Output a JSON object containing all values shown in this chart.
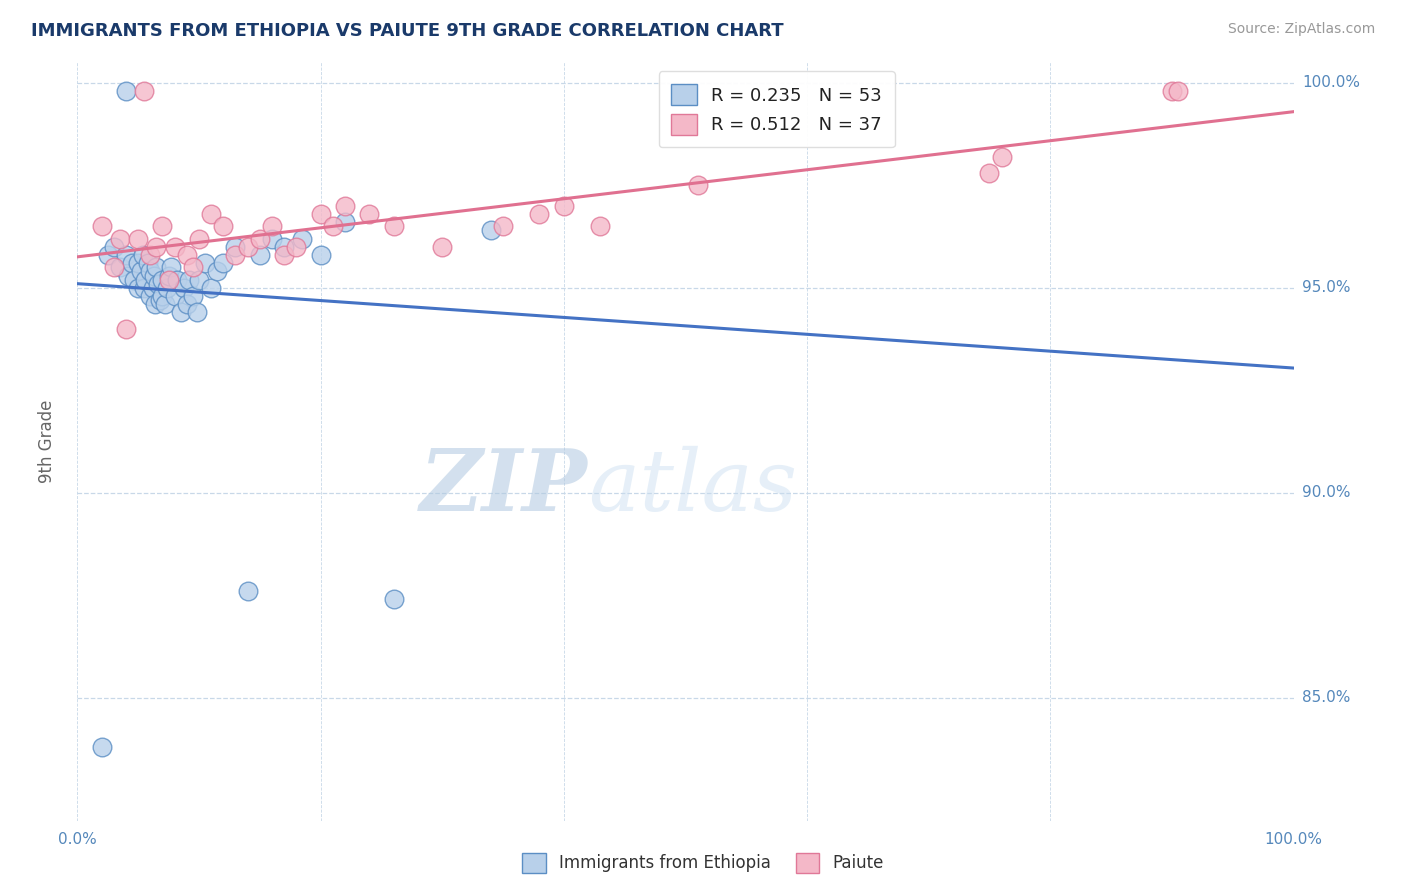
{
  "title": "IMMIGRANTS FROM ETHIOPIA VS PAIUTE 9TH GRADE CORRELATION CHART",
  "source": "Source: ZipAtlas.com",
  "ylabel": "9th Grade",
  "xlim": [
    0.0,
    1.0
  ],
  "ylim": [
    0.82,
    1.005
  ],
  "yticks": [
    0.85,
    0.9,
    0.95,
    1.0
  ],
  "ytick_labels": [
    "85.0%",
    "90.0%",
    "95.0%",
    "100.0%"
  ],
  "R_ethiopia": 0.235,
  "N_ethiopia": 53,
  "R_paiute": 0.512,
  "N_paiute": 37,
  "ethiopia_color": "#b8d0ea",
  "paiute_color": "#f4b8c8",
  "ethiopia_edge_color": "#5b8ec4",
  "paiute_edge_color": "#e07898",
  "ethiopia_line_color": "#4472c4",
  "paiute_line_color": "#e07090",
  "background_color": "#ffffff",
  "grid_color": "#c8d8e8",
  "title_color": "#1a3a6a",
  "axis_label_color": "#5588bb",
  "watermark_color": "#d8e8f4",
  "ethiopia_x": [
    0.02,
    0.025,
    0.03,
    0.035,
    0.04,
    0.04,
    0.042,
    0.045,
    0.047,
    0.05,
    0.05,
    0.052,
    0.054,
    0.055,
    0.056,
    0.058,
    0.06,
    0.06,
    0.062,
    0.063,
    0.064,
    0.065,
    0.066,
    0.068,
    0.07,
    0.07,
    0.072,
    0.074,
    0.075,
    0.077,
    0.08,
    0.082,
    0.085,
    0.088,
    0.09,
    0.092,
    0.095,
    0.098,
    0.1,
    0.105,
    0.11,
    0.115,
    0.12,
    0.13,
    0.14,
    0.15,
    0.16,
    0.17,
    0.185,
    0.2,
    0.22,
    0.26,
    0.34
  ],
  "ethiopia_y": [
    0.838,
    0.958,
    0.96,
    0.955,
    0.998,
    0.958,
    0.953,
    0.956,
    0.952,
    0.956,
    0.95,
    0.954,
    0.958,
    0.95,
    0.952,
    0.956,
    0.948,
    0.954,
    0.95,
    0.953,
    0.946,
    0.955,
    0.951,
    0.947,
    0.948,
    0.952,
    0.946,
    0.95,
    0.953,
    0.955,
    0.948,
    0.952,
    0.944,
    0.95,
    0.946,
    0.952,
    0.948,
    0.944,
    0.952,
    0.956,
    0.95,
    0.954,
    0.956,
    0.96,
    0.876,
    0.958,
    0.962,
    0.96,
    0.962,
    0.958,
    0.966,
    0.874,
    0.964
  ],
  "paiute_x": [
    0.02,
    0.03,
    0.035,
    0.04,
    0.05,
    0.055,
    0.06,
    0.065,
    0.07,
    0.075,
    0.08,
    0.09,
    0.095,
    0.1,
    0.11,
    0.12,
    0.13,
    0.14,
    0.15,
    0.16,
    0.17,
    0.18,
    0.2,
    0.21,
    0.22,
    0.24,
    0.26,
    0.3,
    0.35,
    0.38,
    0.4,
    0.43,
    0.51,
    0.75,
    0.76,
    0.9,
    0.905
  ],
  "paiute_y": [
    0.965,
    0.955,
    0.962,
    0.94,
    0.962,
    0.998,
    0.958,
    0.96,
    0.965,
    0.952,
    0.96,
    0.958,
    0.955,
    0.962,
    0.968,
    0.965,
    0.958,
    0.96,
    0.962,
    0.965,
    0.958,
    0.96,
    0.968,
    0.965,
    0.97,
    0.968,
    0.965,
    0.96,
    0.965,
    0.968,
    0.97,
    0.965,
    0.975,
    0.978,
    0.982,
    0.998,
    0.998
  ],
  "legend_R_color": "#1a3a6a",
  "legend_N_color": "#4472c4"
}
